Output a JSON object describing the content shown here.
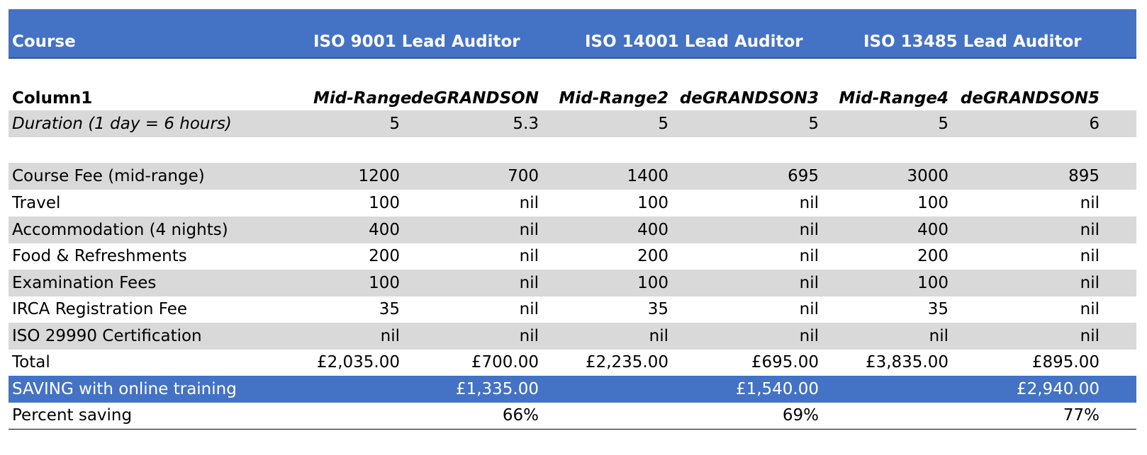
{
  "header": {
    "course": "Course",
    "courses": [
      "ISO 9001 Lead Auditor",
      "ISO 14001 Lead Auditor",
      "ISO 13485 Lead Auditor"
    ]
  },
  "subheader": {
    "column1": "Column1",
    "cols": [
      "Mid-Range",
      "deGRANDSON",
      "Mid-Range2",
      "deGRANDSON3",
      "Mid-Range4",
      "deGRANDSON5"
    ]
  },
  "duration": {
    "label": "Duration (1 day = 6 hours)",
    "values": [
      "5",
      "5.3",
      "5",
      "5",
      "5",
      "6"
    ]
  },
  "costs": [
    {
      "label": "Course Fee (mid-range)",
      "values": [
        "1200",
        "700",
        "1400",
        "695",
        "3000",
        "895"
      ]
    },
    {
      "label": "Travel",
      "values": [
        "100",
        "nil",
        "100",
        "nil",
        "100",
        "nil"
      ]
    },
    {
      "label": "Accommodation (4 nights)",
      "values": [
        "400",
        "nil",
        "400",
        "nil",
        "400",
        "nil"
      ]
    },
    {
      "label": "Food & Refreshments",
      "values": [
        "200",
        "nil",
        "200",
        "nil",
        "200",
        "nil"
      ]
    },
    {
      "label": "Examination Fees",
      "values": [
        "100",
        "nil",
        "100",
        "nil",
        "100",
        "nil"
      ]
    },
    {
      "label": "IRCA Registration Fee",
      "values": [
        "35",
        "nil",
        "35",
        "nil",
        "35",
        "nil"
      ]
    },
    {
      "label": "ISO 29990 Certification",
      "values": [
        "nil",
        "nil",
        "nil",
        "nil",
        "nil",
        "nil"
      ]
    }
  ],
  "total": {
    "label": "Total",
    "values": [
      "£2,035.00",
      "£700.00",
      "£2,235.00",
      "£695.00",
      "£3,835.00",
      "£895.00"
    ]
  },
  "saving": {
    "label": "SAVING with online training",
    "values": [
      "£1,335.00",
      "£1,540.00",
      "£2,940.00"
    ]
  },
  "percent": {
    "label": "Percent saving",
    "values": [
      "66%",
      "69%",
      "77%"
    ]
  },
  "colors": {
    "header_blue": "#4472c4",
    "band_grey": "#d9d9d9"
  }
}
